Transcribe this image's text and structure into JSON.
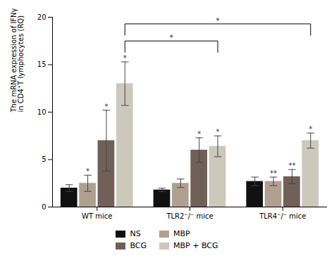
{
  "chart_data": {
    "type": "bar",
    "categories": [
      "WT mice",
      "TLR2⁻/⁻ mice",
      "TLR4⁻/⁻ mice"
    ],
    "series": [
      {
        "name": "NS",
        "color": "#111111",
        "values": [
          2.0,
          1.8,
          2.7
        ],
        "errors": [
          0.35,
          0.18,
          0.45
        ]
      },
      {
        "name": "MBP",
        "color": "#b0a090",
        "values": [
          2.5,
          2.5,
          2.7
        ],
        "errors": [
          0.85,
          0.45,
          0.45
        ]
      },
      {
        "name": "BCG",
        "color": "#706058",
        "values": [
          7.0,
          6.0,
          3.2
        ],
        "errors": [
          3.2,
          1.3,
          0.75
        ]
      },
      {
        "name": "MBP + BCG",
        "color": "#cdc8bc",
        "values": [
          13.0,
          6.4,
          7.0
        ],
        "errors": [
          2.3,
          1.1,
          0.8
        ]
      }
    ],
    "ylabel": "The mRNA expression of IFNγ\nin CD4⁺T lymphocytes (RQ)",
    "ylim": [
      0,
      20
    ],
    "yticks": [
      0,
      5,
      10,
      15,
      20
    ],
    "legend": "bottom",
    "annotations": [
      {
        "category": "WT mice",
        "series": "MBP",
        "text": "*"
      },
      {
        "category": "WT mice",
        "series": "BCG",
        "text": "*"
      },
      {
        "category": "WT mice",
        "series": "MBP + BCG",
        "text": "*"
      },
      {
        "category": "TLR2⁻/⁻ mice",
        "series": "BCG",
        "text": "*"
      },
      {
        "category": "TLR2⁻/⁻ mice",
        "series": "MBP + BCG",
        "text": "*"
      },
      {
        "category": "TLR4⁻/⁻ mice",
        "series": "MBP",
        "text": "**"
      },
      {
        "category": "TLR4⁻/⁻ mice",
        "series": "BCG",
        "text": "**"
      },
      {
        "category": "TLR4⁻/⁻ mice",
        "series": "MBP + BCG",
        "text": "*"
      }
    ],
    "brackets": [
      {
        "from_category": "WT mice",
        "from_series": "MBP + BCG",
        "to_category": "TLR2⁻/⁻ mice",
        "to_series": "MBP + BCG",
        "y": 17.5,
        "drop": 1.2,
        "label": "*"
      },
      {
        "from_category": "WT mice",
        "from_series": "MBP + BCG",
        "to_category": "TLR4⁻/⁻ mice",
        "to_series": "MBP + BCG",
        "y": 19.3,
        "drop": 1.2,
        "label": "*"
      }
    ]
  }
}
